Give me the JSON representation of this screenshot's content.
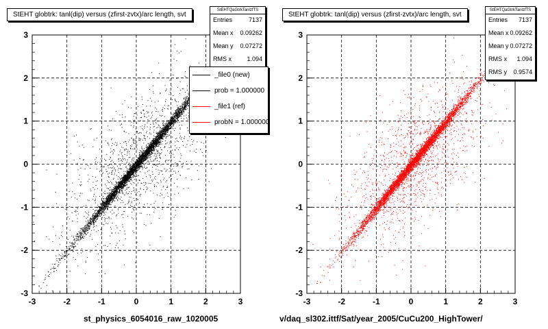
{
  "colors": {
    "file0": "#000000",
    "file1": "#ff0000",
    "background": "#ffffff"
  },
  "chart_data": [
    {
      "type": "scatter",
      "title": "StEHT globtrk: tanl(dip) versus (zfirst-zvtx)/arc length, svt",
      "xlabel": "st_physics_6054016_raw_1020005",
      "ylabel": "",
      "xlim": [
        -3,
        3
      ],
      "ylim": [
        -3,
        3
      ],
      "xticks": [
        "-3",
        "-2",
        "-1",
        "0",
        "1",
        "2",
        "3"
      ],
      "yticks": [
        "-3",
        "-2",
        "-1",
        "0",
        "1",
        "2",
        "3"
      ],
      "grid": true,
      "series": [
        {
          "name": "_file0 (new)",
          "color": "#000000",
          "values": []
        }
      ],
      "distribution": {
        "entries": 7137,
        "mean_x": 0.09262,
        "mean_y": 0.07272,
        "rms_x": 1.094,
        "slope": 1.0
      },
      "stats": {
        "header": "StEHTQaGtrkTanlzfTS",
        "rows": [
          {
            "label": "Entries",
            "value": "7137"
          },
          {
            "label": "Mean x",
            "value": "0.09262"
          },
          {
            "label": "Mean y",
            "value": "0.07272"
          },
          {
            "label": "RMS x",
            "value": "1.094"
          }
        ]
      },
      "legend": [
        {
          "label": "_file0 (new)",
          "color": "#000000"
        },
        {
          "label": "prob = 1.000000",
          "color": "#000000"
        },
        {
          "label": "_file1 (ref)",
          "color": "#ff0000"
        },
        {
          "label": "probN = 1.000000",
          "color": "#ff0000"
        }
      ],
      "legend_position": "top-right"
    },
    {
      "type": "scatter",
      "title": "StEHT globtrk: tanl(dip) versus (zfirst-zvtx)/arc length, svt",
      "xlabel": "v/daq_sl302.ittf/Sat/year_2005/CuCu200_HighTower/",
      "ylabel": "",
      "xlim": [
        -3,
        3
      ],
      "ylim": [
        -3,
        3
      ],
      "xticks": [
        "-3",
        "-2",
        "-1",
        "0",
        "1",
        "2",
        "3"
      ],
      "yticks": [
        "-3",
        "-2",
        "-1",
        "0",
        "1",
        "2",
        "3"
      ],
      "grid": true,
      "series": [
        {
          "name": "_file1 (ref)",
          "color": "#ff0000",
          "values": []
        }
      ],
      "distribution": {
        "entries": 7137,
        "mean_x": 0.09262,
        "mean_y": 0.07272,
        "rms_x": 1.094,
        "rms_y": 0.9574,
        "slope": 1.0
      },
      "stats": {
        "header": "StEHTQaGtrkTanlzfTS",
        "rows": [
          {
            "label": "Entries",
            "value": "7137"
          },
          {
            "label": "Mean x",
            "value": "0.09262"
          },
          {
            "label": "Mean y",
            "value": "0.07272"
          },
          {
            "label": "RMS x",
            "value": "1.094"
          },
          {
            "label": "RMS y",
            "value": "0.9574"
          }
        ]
      }
    }
  ]
}
